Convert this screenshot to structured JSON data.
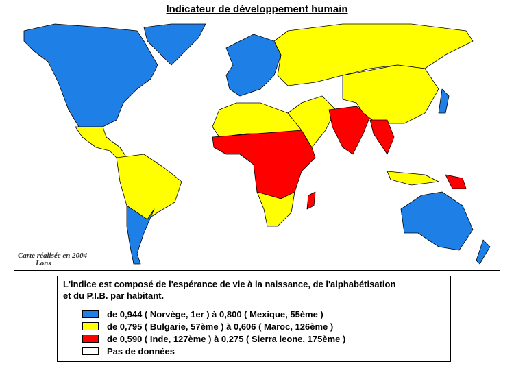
{
  "title": "Indicateur de développement humain",
  "credit": [
    "Carte réalisée en 2004",
    "Lons"
  ],
  "legend": {
    "description": [
      "L'indice est composé de l'espérance de vie à la naissance, de l'alphabétisation",
      "et du P.I.B. par habitant."
    ],
    "items": [
      {
        "label": "de 0,944 ( Norvège, 1er ) à 0,800 ( Mexique, 55ème )",
        "color": "#1e7fe6"
      },
      {
        "label": "de 0,795 ( Bulgarie, 57ème ) à 0,606 ( Maroc, 126ème )",
        "color": "#ffff00"
      },
      {
        "label": "de 0,590 ( Inde, 127ème ) à 0,275 ( Sierra leone, 175ème )",
        "color": "#ff0000"
      },
      {
        "label": "Pas de données",
        "color": "#ffffff"
      }
    ]
  }
}
